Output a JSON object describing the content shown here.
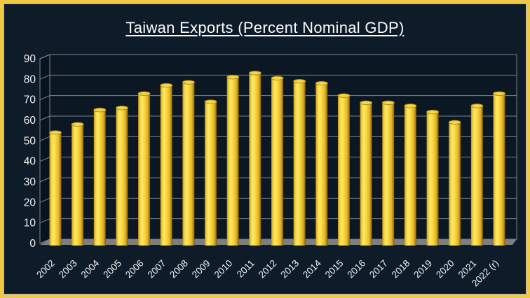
{
  "title": "Taiwan Exports (Percent Nominal GDP)",
  "colors": {
    "frame_border": "#EFC845",
    "background": "#0E1B28",
    "back_wall": "#0B1723",
    "side_wall": "#091320",
    "gridline": "#7D858D",
    "floor": "#7F7F7F",
    "bar_main": "#F9D83F",
    "bar_highlight": "#FDE967",
    "bar_shadow": "#6E5608",
    "bar_top": "#F7DA4A",
    "bar_top_rim": "#AD8A1E",
    "label_text": "#F2F2F2"
  },
  "chart_data": {
    "type": "bar",
    "style": "3d-cylinder",
    "title": "Taiwan Exports (Percent Nominal GDP)",
    "categories": [
      "2002",
      "2003",
      "2004",
      "2005",
      "2006",
      "2007",
      "2008",
      "2009",
      "2010",
      "2011",
      "2012",
      "2013",
      "2014",
      "2015",
      "2016",
      "2017",
      "2018",
      "2019",
      "2020",
      "2021",
      "2022 (r)"
    ],
    "values": [
      52,
      56,
      63,
      64,
      71,
      75,
      76.5,
      67,
      79,
      81,
      78.5,
      77,
      76,
      70,
      66.5,
      66.5,
      65,
      62,
      57,
      65,
      71
    ],
    "xlabel": "",
    "ylabel": "",
    "ylim": [
      0,
      90
    ],
    "yticks": [
      0,
      10,
      20,
      30,
      40,
      50,
      60,
      70,
      80,
      90
    ],
    "grid": true,
    "legend": false,
    "x_tick_rotation_deg": 45
  }
}
